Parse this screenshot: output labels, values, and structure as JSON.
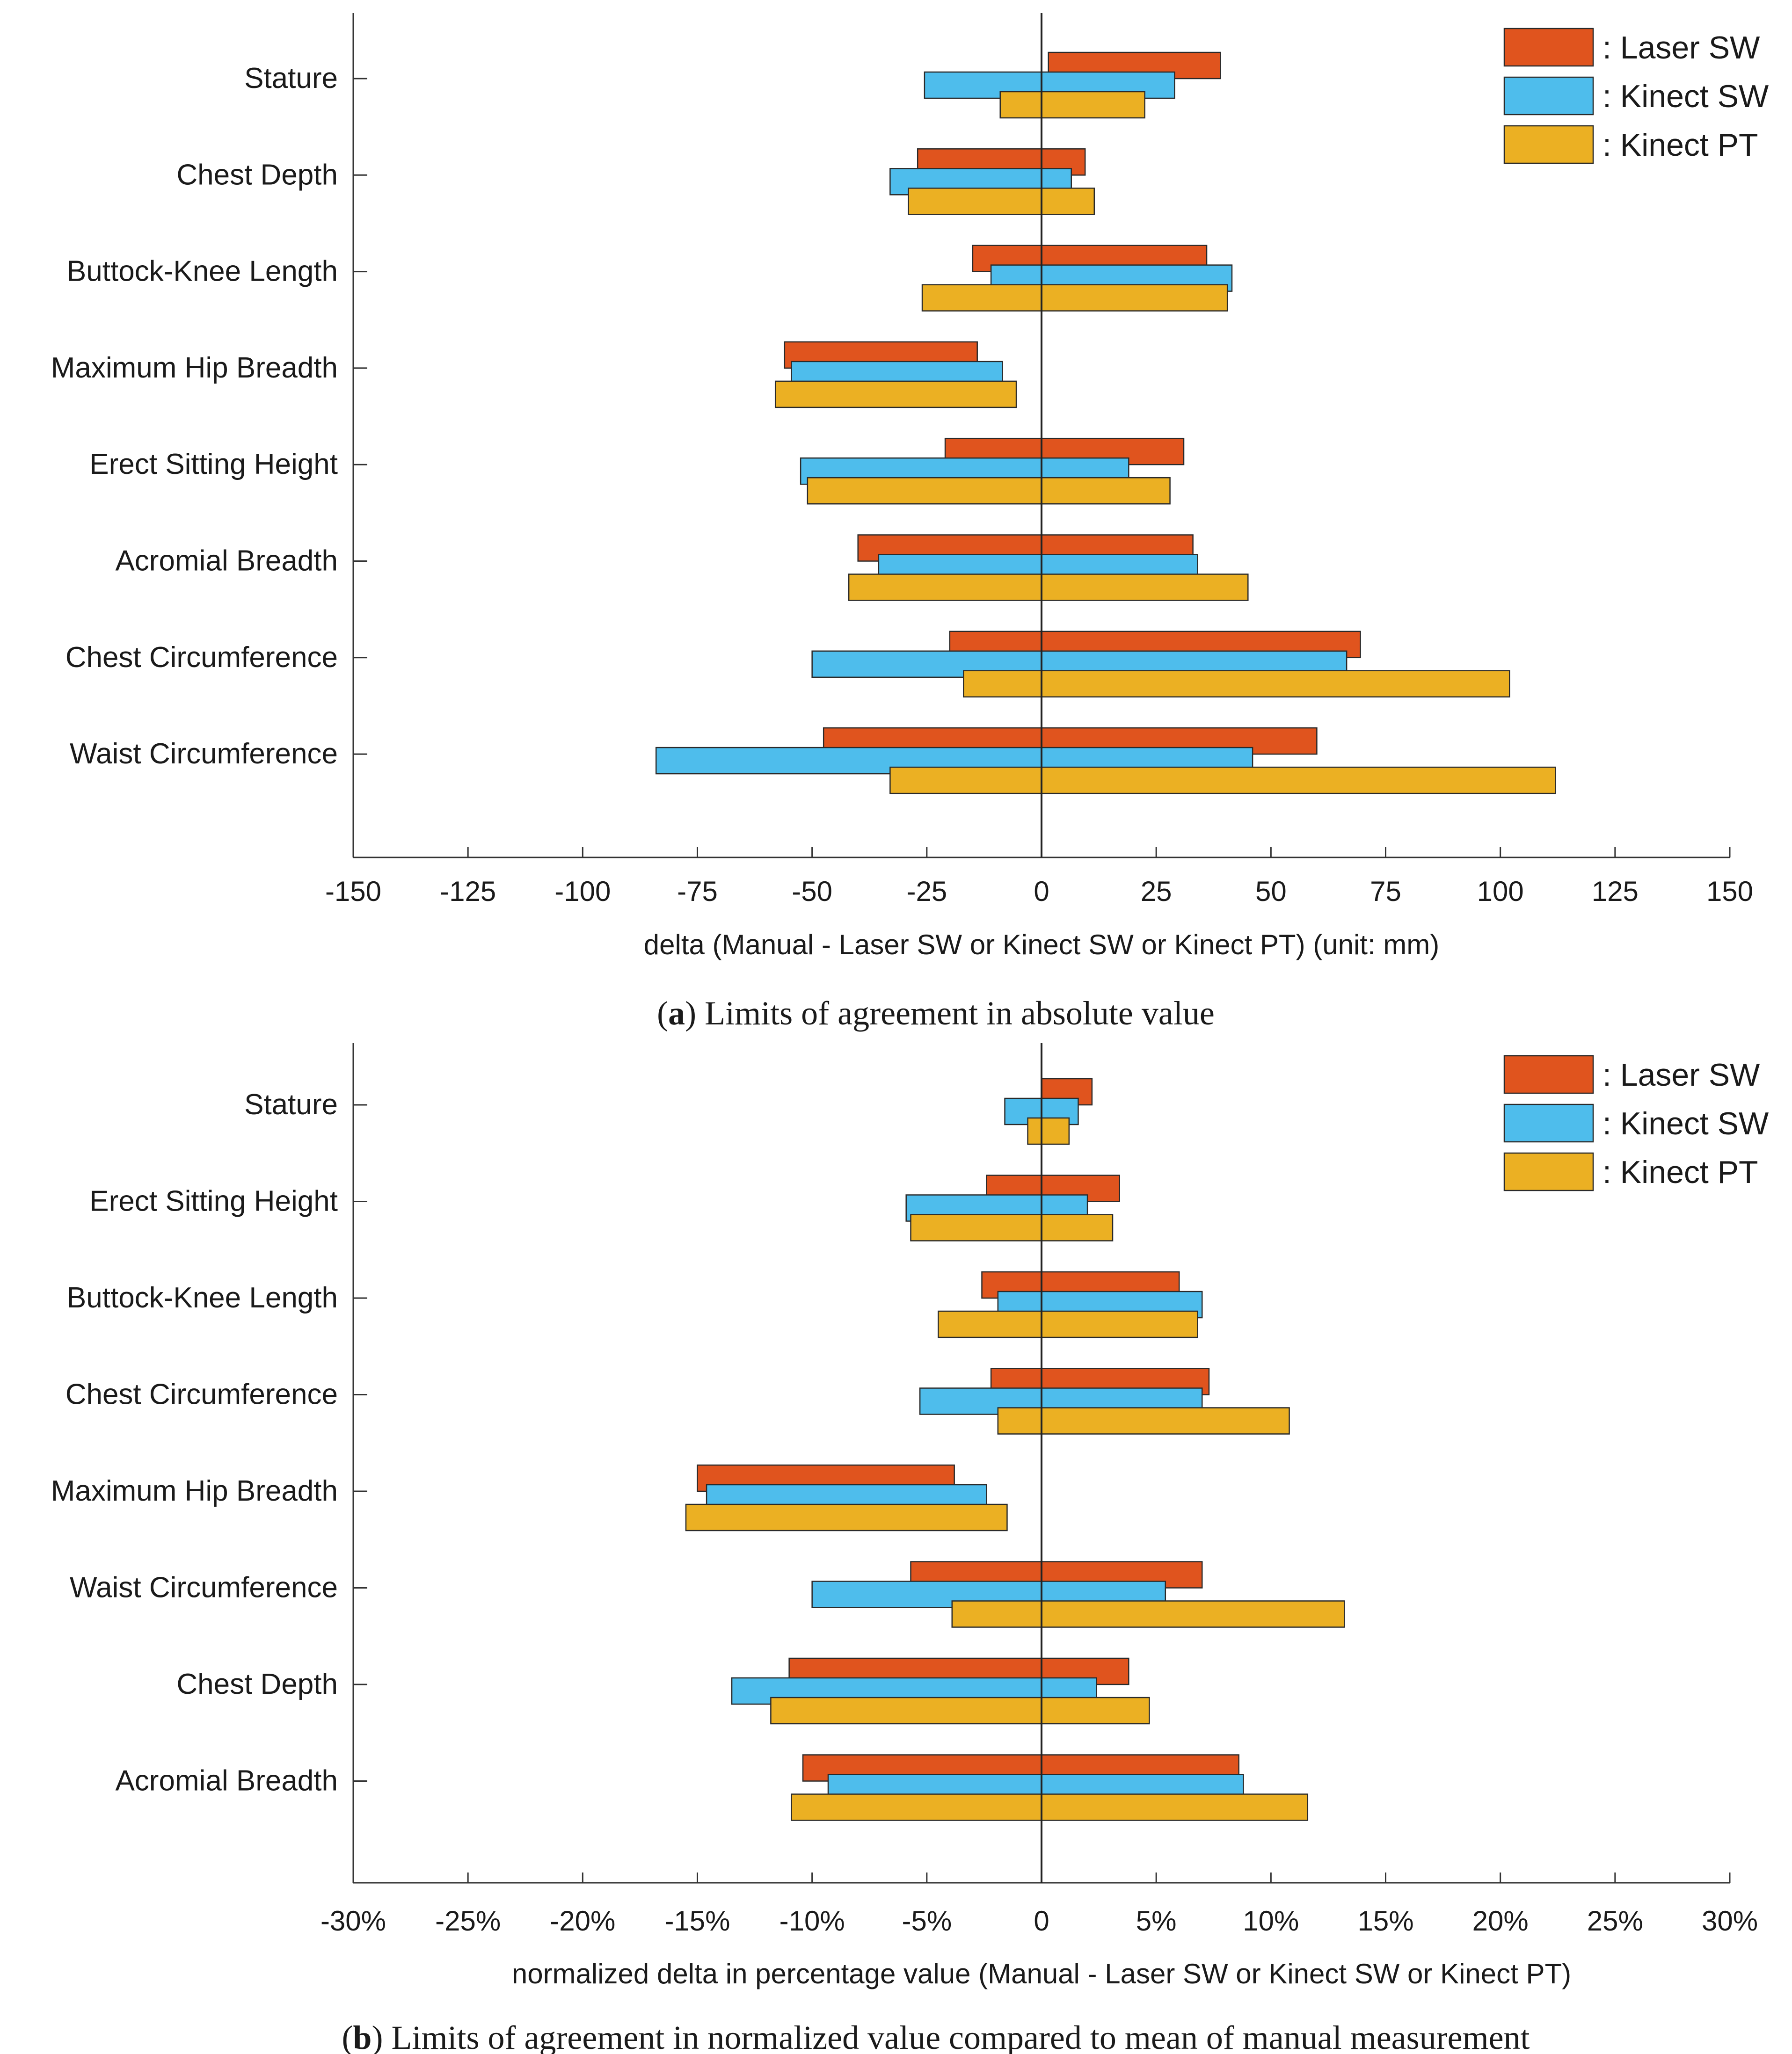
{
  "charts": [
    {
      "type": "bar",
      "subtype": "floating-horizontal-range",
      "title": "",
      "caption_bold": "a",
      "caption_text": "Limits of agreement in absolute value",
      "xlabel": "delta (Manual - Laser SW or Kinect SW or Kinect PT) (unit: mm)",
      "xlim": [
        -150,
        150
      ],
      "xticks": [
        -150,
        -125,
        -100,
        -75,
        -50,
        -25,
        0,
        25,
        50,
        75,
        100,
        125,
        150
      ],
      "xtick_labels": [
        "-150",
        "-125",
        "-100",
        "-75",
        "-50",
        "-25",
        "0",
        "25",
        "50",
        "75",
        "100",
        "125",
        "150"
      ],
      "categories": [
        "Stature",
        "Chest Depth",
        "Buttock-Knee Length",
        "Maximum Hip Breadth",
        "Erect Sitting Height",
        "Acromial Breadth",
        "Chest Circumference",
        "Waist Circumference"
      ],
      "legend": {
        "position": "top-right",
        "prefix": ": "
      },
      "series": [
        {
          "name": "Laser SW",
          "color": "#e0541e",
          "ranges": [
            [
              1.5,
              39
            ],
            [
              -27,
              9.5
            ],
            [
              -15,
              36
            ],
            [
              -56,
              -14
            ],
            [
              -21,
              31
            ],
            [
              -40,
              33
            ],
            [
              -20,
              69.5
            ],
            [
              -47.5,
              60
            ]
          ]
        },
        {
          "name": "Kinect SW",
          "color": "#4ebdec",
          "ranges": [
            [
              -25.5,
              29
            ],
            [
              -33,
              6.5
            ],
            [
              -11,
              41.5
            ],
            [
              -54.5,
              -8.5
            ],
            [
              -52.5,
              19
            ],
            [
              -35.5,
              34
            ],
            [
              -50,
              66.5
            ],
            [
              -84,
              46
            ]
          ]
        },
        {
          "name": "Kinect PT",
          "color": "#ebb023",
          "ranges": [
            [
              -9,
              22.5
            ],
            [
              -29,
              11.5
            ],
            [
              -26,
              40.5
            ],
            [
              -58,
              -5.5
            ],
            [
              -51,
              28
            ],
            [
              -42,
              45
            ],
            [
              -17,
              102
            ],
            [
              -33,
              112
            ]
          ]
        }
      ]
    },
    {
      "type": "bar",
      "subtype": "floating-horizontal-range",
      "title": "",
      "caption_bold": "b",
      "caption_text": "Limits of agreement in normalized value compared to mean of manual measurement",
      "xlabel": "normalized delta in percentage value (Manual - Laser SW or Kinect SW or Kinect PT)",
      "xlim": [
        -30,
        30
      ],
      "xticks": [
        -30,
        -25,
        -20,
        -15,
        -10,
        -5,
        0,
        5,
        10,
        15,
        20,
        25,
        30
      ],
      "xtick_labels": [
        "-30%",
        "-25%",
        "-20%",
        "-15%",
        "-10%",
        "-5%",
        "0",
        "5%",
        "10%",
        "15%",
        "20%",
        "25%",
        "30%"
      ],
      "categories": [
        "Stature",
        "Erect Sitting Height",
        "Buttock-Knee Length",
        "Chest Circumference",
        "Maximum Hip Breadth",
        "Waist Circumference",
        "Chest Depth",
        "Acromial Breadth"
      ],
      "legend": {
        "position": "top-right",
        "prefix": ": "
      },
      "series": [
        {
          "name": "Laser SW",
          "color": "#e0541e",
          "ranges": [
            [
              0,
              2.2
            ],
            [
              -2.4,
              3.4
            ],
            [
              -2.6,
              6
            ],
            [
              -2.2,
              7.3
            ],
            [
              -15,
              -3.8
            ],
            [
              -5.7,
              7
            ],
            [
              -11,
              3.8
            ],
            [
              -10.4,
              8.6
            ]
          ]
        },
        {
          "name": "Kinect SW",
          "color": "#4ebdec",
          "ranges": [
            [
              -1.6,
              1.6
            ],
            [
              -5.9,
              2
            ],
            [
              -1.9,
              7
            ],
            [
              -5.3,
              7
            ],
            [
              -14.6,
              -2.4
            ],
            [
              -10,
              5.4
            ],
            [
              -13.5,
              2.4
            ],
            [
              -9.3,
              8.8
            ]
          ]
        },
        {
          "name": "Kinect PT",
          "color": "#ebb023",
          "ranges": [
            [
              -0.6,
              1.2
            ],
            [
              -5.7,
              3.1
            ],
            [
              -4.5,
              6.8
            ],
            [
              -1.9,
              10.8
            ],
            [
              -15.5,
              -1.5
            ],
            [
              -3.9,
              13.2
            ],
            [
              -11.8,
              4.7
            ],
            [
              -10.9,
              11.6
            ]
          ]
        }
      ]
    }
  ]
}
